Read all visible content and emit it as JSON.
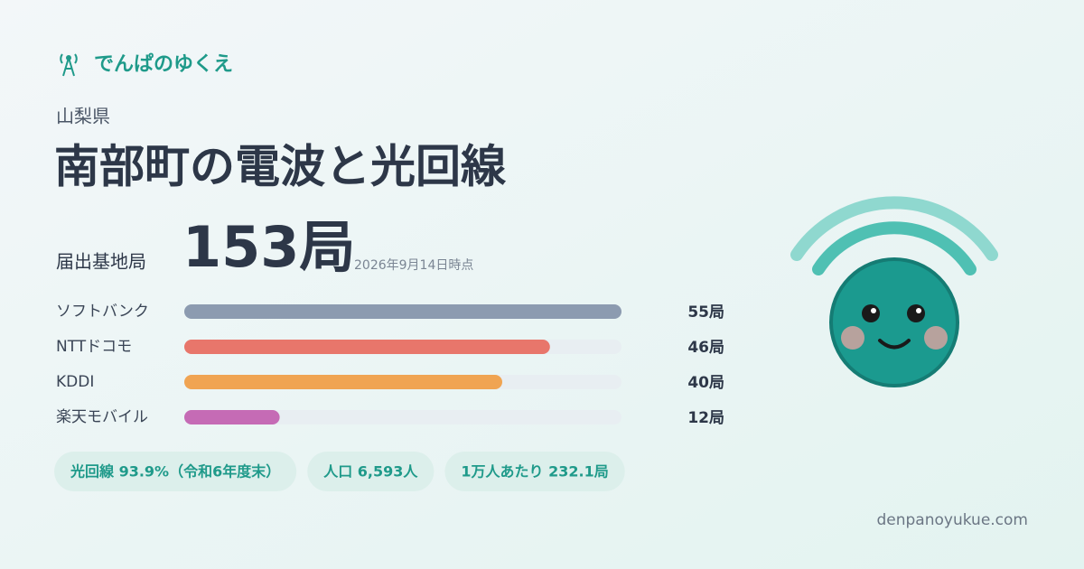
{
  "brand": "でんぱのゆくえ",
  "prefecture": "山梨県",
  "title": "南部町の電波と光回線",
  "total_label": "届出基地局",
  "total": "153局",
  "as_of": "2026年9月14日時点",
  "chart_data": {
    "type": "bar",
    "categories": [
      "ソフトバンク",
      "NTTドコモ",
      "KDDI",
      "楽天モバイル"
    ],
    "values": [
      55,
      46,
      40,
      12
    ],
    "value_labels": [
      "55局",
      "46局",
      "40局",
      "12局"
    ],
    "colors": [
      "#8c9bb0",
      "#e8766b",
      "#f0a452",
      "#c56bb5"
    ]
  },
  "stats": [
    "光回線 93.9%（令和6年度末）",
    "人口 6,593人",
    "1万人あたり 232.1局"
  ],
  "site": "denpanoyukue.com"
}
